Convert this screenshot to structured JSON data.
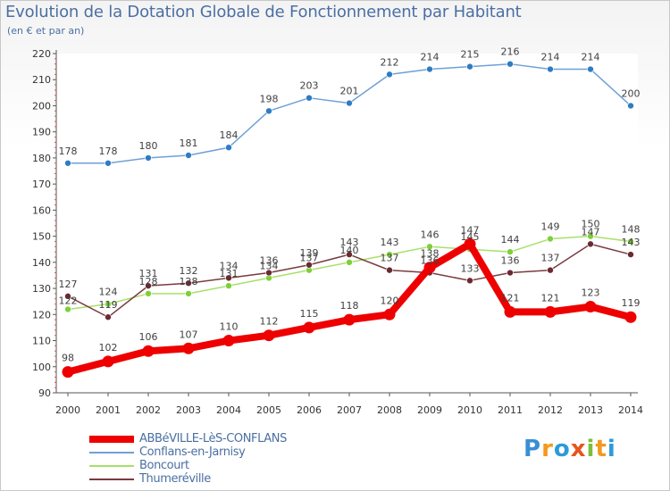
{
  "title": "Evolution de la Dotation Globale de Fonctionnement par Habitant",
  "subtitle": "(en € et par an)",
  "brand": {
    "letters": [
      "P",
      "r",
      "o",
      "x",
      "i",
      "t",
      "i"
    ],
    "colors": [
      "#3a8fd4",
      "#f29a1f",
      "#2e9ad8",
      "#e8541c",
      "#7cbf3a",
      "#f29a1f",
      "#2e9ad8"
    ]
  },
  "chart_data": {
    "type": "line",
    "title": "Evolution de la Dotation Globale de Fonctionnement par Habitant",
    "ylabel": "(en € et par an)",
    "xlabel": "",
    "ylim": [
      90,
      220
    ],
    "yticks": [
      90,
      100,
      110,
      120,
      130,
      140,
      150,
      160,
      170,
      180,
      190,
      200,
      210,
      220
    ],
    "grid": false,
    "categories": [
      "2000",
      "2001",
      "2002",
      "2003",
      "2004",
      "2005",
      "2006",
      "2007",
      "2008",
      "2009",
      "2010",
      "2011",
      "2012",
      "2013",
      "2014"
    ],
    "series": [
      {
        "name": "Conflans-en-Jarnisy",
        "color": "#6fa0d6",
        "marker": "#2f7cc4",
        "values": [
          178,
          178,
          180,
          181,
          184,
          198,
          203,
          201,
          212,
          214,
          215,
          216,
          214,
          214,
          200
        ]
      },
      {
        "name": "Boncourt",
        "color": "#a8e06a",
        "marker": "#7fcf3a",
        "values": [
          122,
          124,
          128,
          128,
          131,
          134,
          137,
          140,
          143,
          146,
          145,
          144,
          149,
          150,
          148
        ]
      },
      {
        "name": "Thumeréville",
        "color": "#7a3a40",
        "marker": "#6a2a30",
        "values": [
          127,
          119,
          131,
          132,
          134,
          136,
          139,
          143,
          137,
          136,
          133,
          136,
          137,
          147,
          143
        ]
      },
      {
        "name": "ABBéVILLE-LèS-CONFLANS",
        "color": "#ee0000",
        "marker": "#ee0000",
        "values": [
          98,
          102,
          106,
          107,
          110,
          112,
          115,
          118,
          120,
          138,
          147,
          121,
          121,
          123,
          119
        ]
      }
    ],
    "legend": {
      "placement": "bottom-left",
      "items": [
        {
          "name": "ABBéVILLE-LèS-CONFLANS",
          "color": "#ee0000",
          "text_color": "#4b6fa3"
        },
        {
          "name": "Conflans-en-Jarnisy",
          "color": "#6fa0d6",
          "text_color": "#4b6fa3"
        },
        {
          "name": "Boncourt",
          "color": "#a8e06a",
          "text_color": "#4b6fa3"
        },
        {
          "name": "Thumeréville",
          "color": "#7a3a40",
          "text_color": "#4b6fa3"
        }
      ]
    }
  }
}
